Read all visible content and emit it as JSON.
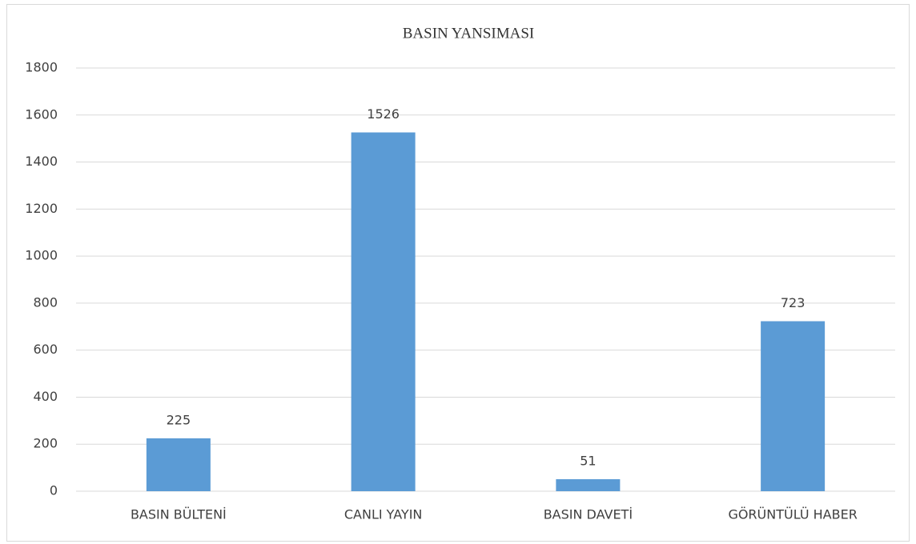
{
  "chart_data": {
    "type": "bar",
    "title": "BASIN YANSIMASI",
    "categories": [
      "BASIN BÜLTENİ",
      "CANLI YAYIN",
      "BASIN DAVETİ",
      "GÖRÜNTÜLÜ HABER"
    ],
    "values": [
      225,
      1526,
      51,
      723
    ],
    "color": "#5b9bd5",
    "ylim": [
      0,
      1800
    ],
    "yticks": [
      0,
      200,
      400,
      600,
      800,
      1000,
      1200,
      1400,
      1600,
      1800
    ],
    "grid": true
  }
}
